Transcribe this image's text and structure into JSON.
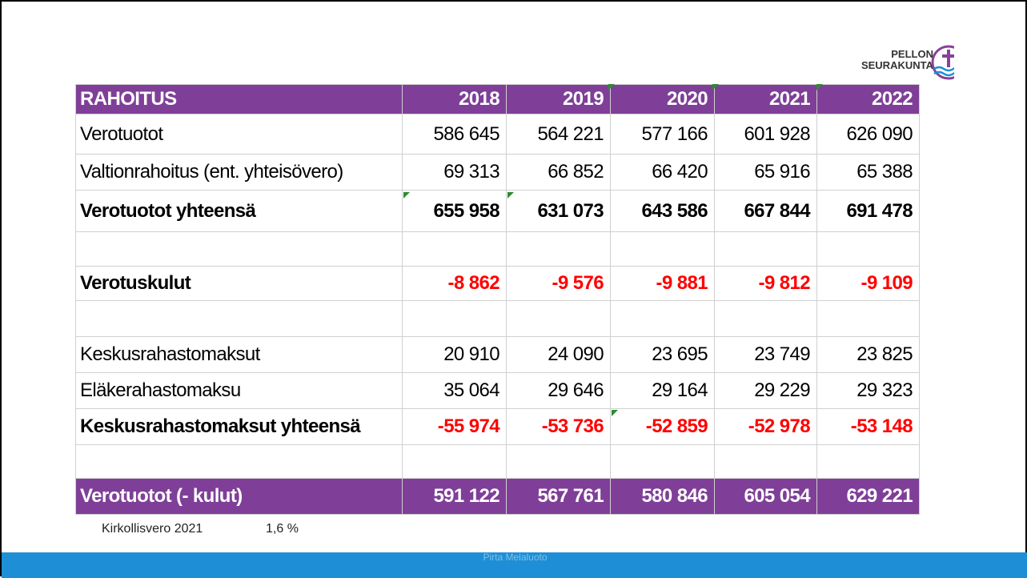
{
  "logo": {
    "line1": "PELLON",
    "line2": "SEURAKUNTA"
  },
  "table": {
    "header": [
      "RAHOITUS",
      "2018",
      "2019",
      "2020",
      "2021",
      "2022"
    ],
    "rows": [
      [
        "Verotuotot",
        "586 645",
        "564 221",
        "577 166",
        "601 928",
        "626 090"
      ],
      [
        "Valtionrahoitus (ent. yhteisövero)",
        "69 313",
        "66 852",
        "66 420",
        "65 916",
        "65 388"
      ],
      [
        "Verotuotot yhteensä",
        "655 958",
        "631 073",
        "643 586",
        "667 844",
        "691 478"
      ],
      [
        "Verotuskulut",
        "-8 862",
        "-9 576",
        "-9 881",
        "-9 812",
        "-9 109"
      ],
      [
        "Keskusrahastomaksut",
        "20 910",
        "24 090",
        "23 695",
        "23 749",
        "23 825"
      ],
      [
        "Eläkerahastomaksu",
        "35 064",
        "29 646",
        "29 164",
        "29 229",
        "29 323"
      ],
      [
        "Keskusrahastomaksut yhteensä",
        "-55 974",
        "-53 736",
        "-52 859",
        "-52 978",
        "-53 148"
      ]
    ],
    "footer": [
      "Verotuotot  (- kulut)",
      "591 122",
      "567 761",
      "580 846",
      "605 054",
      "629 221"
    ]
  },
  "note": {
    "label": "Kirkollisvero 2021",
    "value": "1,6 %"
  },
  "footer_text": "Pirta Melaluoto"
}
